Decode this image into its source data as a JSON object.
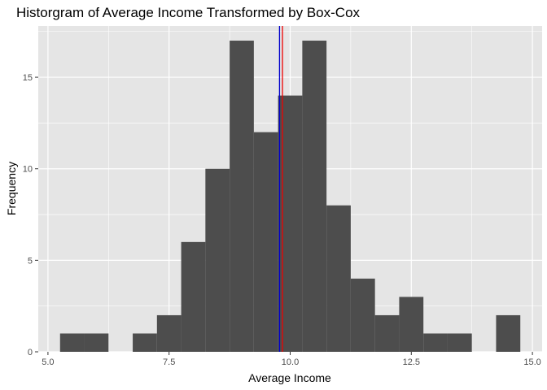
{
  "chart_data": {
    "type": "bar",
    "title": "Historgram of Average Income Transformed by Box-Cox",
    "xlabel": "Average Income",
    "ylabel": "Frequency",
    "xlim": [
      4.8,
      15.2
    ],
    "ylim": [
      0,
      17.8
    ],
    "x_ticks": [
      5.0,
      7.5,
      10.0,
      12.5,
      15.0
    ],
    "x_tick_labels": [
      "5.0",
      "7.5",
      "10.0",
      "12.5",
      "15.0"
    ],
    "y_ticks": [
      0,
      5,
      10,
      15
    ],
    "y_tick_labels": [
      "0",
      "5",
      "10",
      "15"
    ],
    "grid": true,
    "bins": [
      {
        "x0": 5.25,
        "x1": 5.75,
        "count": 1
      },
      {
        "x0": 5.75,
        "x1": 6.25,
        "count": 1
      },
      {
        "x0": 6.25,
        "x1": 6.75,
        "count": 0
      },
      {
        "x0": 6.75,
        "x1": 7.25,
        "count": 1
      },
      {
        "x0": 7.25,
        "x1": 7.75,
        "count": 2
      },
      {
        "x0": 7.75,
        "x1": 8.25,
        "count": 6
      },
      {
        "x0": 8.25,
        "x1": 8.75,
        "count": 10
      },
      {
        "x0": 8.75,
        "x1": 9.25,
        "count": 17
      },
      {
        "x0": 9.25,
        "x1": 9.75,
        "count": 12
      },
      {
        "x0": 9.75,
        "x1": 10.25,
        "count": 14
      },
      {
        "x0": 10.25,
        "x1": 10.75,
        "count": 17
      },
      {
        "x0": 10.75,
        "x1": 11.25,
        "count": 8
      },
      {
        "x0": 11.25,
        "x1": 11.75,
        "count": 4
      },
      {
        "x0": 11.75,
        "x1": 12.25,
        "count": 2
      },
      {
        "x0": 12.25,
        "x1": 12.75,
        "count": 3
      },
      {
        "x0": 12.75,
        "x1": 13.25,
        "count": 1
      },
      {
        "x0": 13.25,
        "x1": 13.75,
        "count": 1
      },
      {
        "x0": 13.75,
        "x1": 14.25,
        "count": 0
      },
      {
        "x0": 14.25,
        "x1": 14.75,
        "count": 2
      }
    ],
    "reference_lines": [
      {
        "x": 9.78,
        "color": "#0000cc"
      },
      {
        "x": 9.84,
        "color": "#ee0000"
      }
    ],
    "bar_color": "#4d4d4d",
    "panel_background": "#e5e5e5",
    "grid_color": "#ffffff"
  }
}
